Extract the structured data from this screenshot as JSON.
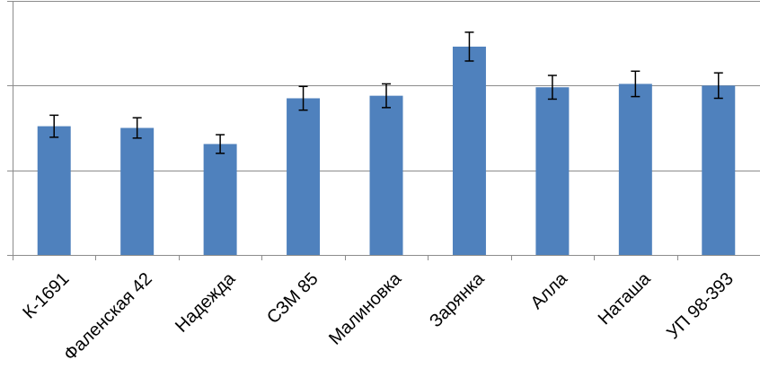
{
  "chart_data": {
    "type": "bar",
    "title": "",
    "xlabel": "",
    "ylabel": "",
    "categories": [
      "К-1691",
      "Фаленская 42",
      "Надежда",
      "СЗМ 85",
      "Малиновка",
      "Зарянка",
      "Алла",
      "Наташа",
      "УП 98-393"
    ],
    "values": [
      1.52,
      1.5,
      1.31,
      1.85,
      1.88,
      2.46,
      1.98,
      2.02,
      2.0
    ],
    "errors": [
      0.13,
      0.12,
      0.11,
      0.14,
      0.14,
      0.17,
      0.14,
      0.15,
      0.15
    ],
    "ylim": [
      0,
      3
    ],
    "y_gridlines": [
      1,
      2,
      3
    ],
    "y_tick_labels_shown": false,
    "grid": true,
    "legend": "none",
    "bar_color": "#4f81bd",
    "error_bar_color": "#000000",
    "grid_color": "#8c8c8c"
  }
}
